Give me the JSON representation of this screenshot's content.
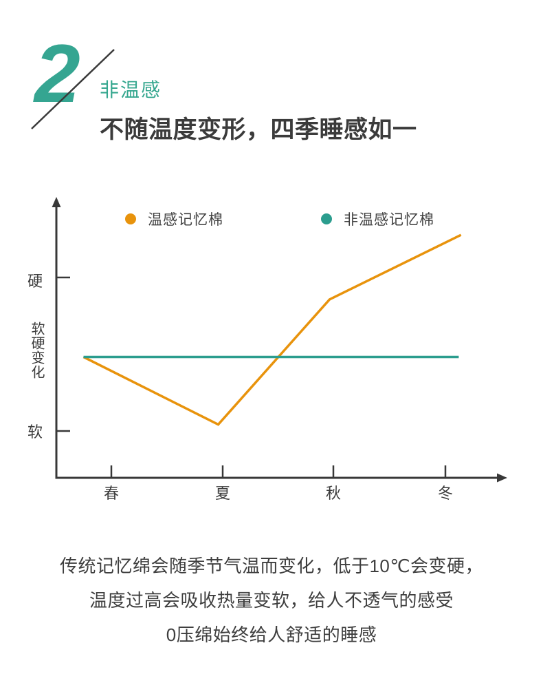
{
  "header": {
    "section_number": "2",
    "section_label": "非温感",
    "title": "不随温度变形，四季睡感如一"
  },
  "chart_data": {
    "type": "line",
    "title": "",
    "categories": [
      "春",
      "夏",
      "秋",
      "冬"
    ],
    "x_axis_note": "seasons, arrow axis, ticks at each season",
    "y_axis": {
      "top_tick_label": "硬",
      "axis_label": "软硬变化",
      "bottom_tick_label": "软"
    },
    "grid": false,
    "legend_position": "top",
    "value_scale_note": "qualitative softness-hardness scale: 0 = constant feel of non-temperature-sensitive foam, 硬 tick ≈ +1.04, 软 tick ≈ -0.96",
    "series": [
      {
        "name": "温感记忆棉",
        "color": "#e8930c",
        "x": [
          -0.25,
          0.96,
          1.96,
          3.14
        ],
        "values": [
          0,
          -0.88,
          0.75,
          1.59
        ]
      },
      {
        "name": "非温感记忆棉",
        "color": "#2b9d8e",
        "x": [
          -0.25,
          3.12
        ],
        "values": [
          0,
          0
        ]
      }
    ]
  },
  "footer": {
    "lines": [
      "传统记忆绵会随季节气温而变化，低于10℃会变硬，",
      "温度过高会吸收热量变软，给人不透气的感受",
      "0压绵始终给人舒适的睡感"
    ]
  },
  "colors": {
    "accent_teal": "#35a591",
    "accent_orange": "#e8930c",
    "axis": "#383838",
    "text": "#3b3b3b"
  }
}
